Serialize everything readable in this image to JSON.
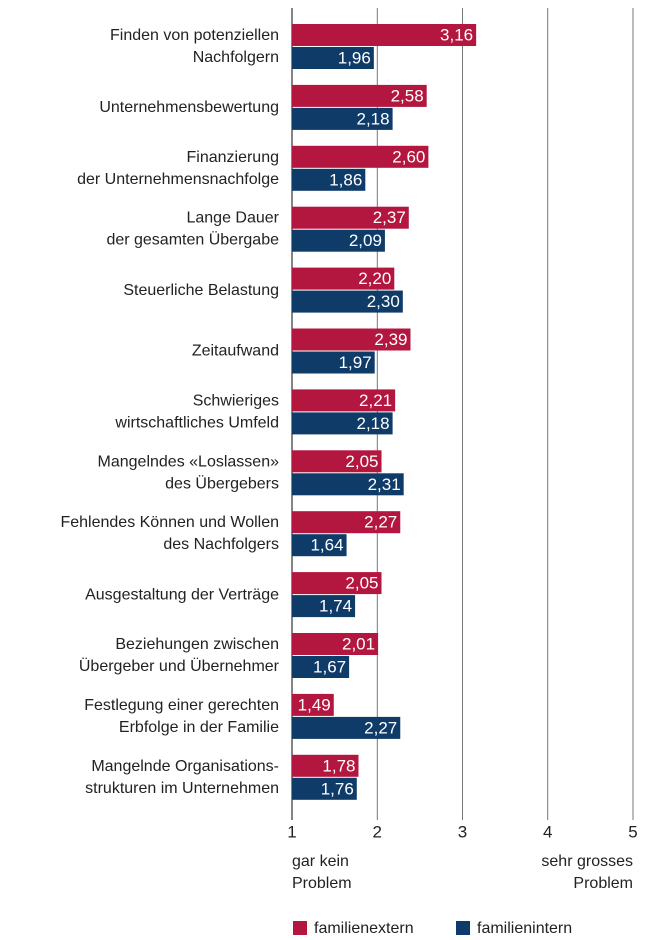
{
  "chart_data": {
    "type": "barh",
    "categories": [
      "Finden von potenziellen\nNachfolgern",
      "Unternehmensbewertung",
      "Finanzierung\nder Unternehmensnachfolge",
      "Lange Dauer\nder gesamten Übergabe",
      "Steuerliche Belastung",
      "Zeitaufwand",
      "Schwieriges\nwirtschaftliches Umfeld",
      "Mangelndes «Loslassen»\ndes Übergebers",
      "Fehlendes Können und Wollen\ndes Nachfolgers",
      "Ausgestaltung der Verträge",
      "Beziehungen zwischen\nÜbergeber und Übernehmer",
      "Festlegung einer gerechten\nErbfolge in der Familie",
      "Mangelnde Organisations-\nstrukturen im Unternehmen"
    ],
    "series": [
      {
        "name": "familienextern",
        "color": "#b3173f",
        "values": [
          3.16,
          2.58,
          2.6,
          2.37,
          2.2,
          2.39,
          2.21,
          2.05,
          2.27,
          2.05,
          2.01,
          1.49,
          1.78
        ],
        "value_labels": [
          "3,16",
          "2,58",
          "2,60",
          "2,37",
          "2,20",
          "2,39",
          "2,21",
          "2,05",
          "2,27",
          "2,05",
          "2,01",
          "1,49",
          "1,78"
        ]
      },
      {
        "name": "familienintern",
        "color": "#0f3b69",
        "values": [
          1.96,
          2.18,
          1.86,
          2.09,
          2.3,
          1.97,
          2.18,
          2.31,
          1.64,
          1.74,
          1.67,
          2.27,
          1.76
        ],
        "value_labels": [
          "1,96",
          "2,18",
          "1,86",
          "2,09",
          "2,30",
          "1,97",
          "2,18",
          "2,31",
          "1,64",
          "1,74",
          "1,67",
          "2,27",
          "1,76"
        ]
      }
    ],
    "xlim": [
      1,
      5
    ],
    "xticks": [
      1,
      2,
      3,
      4,
      5
    ],
    "grid": true,
    "low_label": "gar kein\nProblem",
    "high_label": "sehr grosses\nProblem",
    "legend": "bottom"
  }
}
